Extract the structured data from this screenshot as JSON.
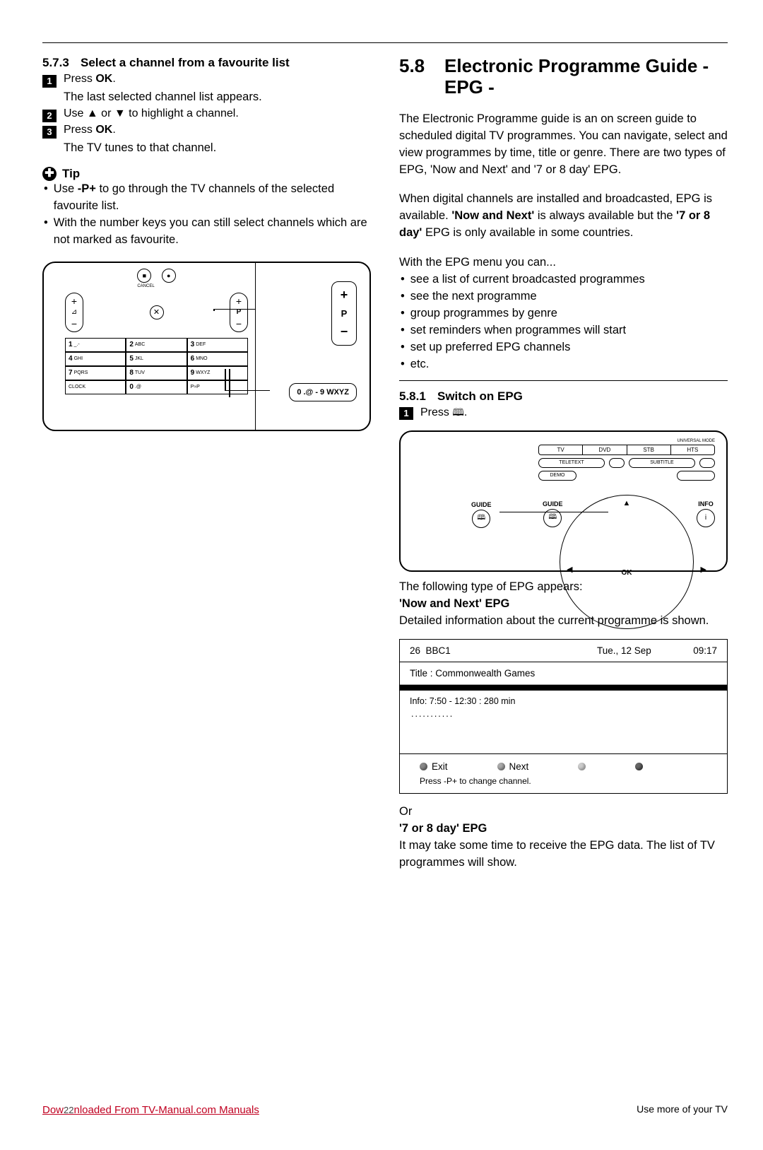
{
  "left": {
    "sec_num": "5.7.3",
    "sec_title": "Select a channel from a favourite list",
    "steps": [
      {
        "n": "1",
        "text_a": "Press ",
        "bold": "OK",
        "text_b": ".",
        "sub": "The last selected channel list appears."
      },
      {
        "n": "2",
        "text_a": "Use  ▲  or  ▼  to highlight a channel."
      },
      {
        "n": "3",
        "text_a": "Press ",
        "bold": "OK",
        "text_b": ".",
        "sub": "The TV tunes to that channel."
      }
    ],
    "tip_label": "Tip",
    "tips": [
      {
        "a": "Use ",
        "bold": "-P+",
        "b": " to go through the TV channels of the selected favourite list."
      },
      {
        "a": "With the number keys you can still select channels which are not marked as favourite."
      }
    ],
    "diagram": {
      "cancel": "CANCEL",
      "p_label": "P",
      "keypad": [
        [
          {
            "n": "1",
            "t": "_.-"
          },
          {
            "n": "2",
            "t": "ABC"
          },
          {
            "n": "3",
            "t": "DEF"
          }
        ],
        [
          {
            "n": "4",
            "t": "GHI"
          },
          {
            "n": "5",
            "t": "JKL"
          },
          {
            "n": "6",
            "t": "MNO"
          }
        ],
        [
          {
            "n": "7",
            "t": "PQRS"
          },
          {
            "n": "8",
            "t": "TUV"
          },
          {
            "n": "9",
            "t": "WXYZ"
          }
        ],
        [
          {
            "n": "",
            "t": "CLOCK"
          },
          {
            "n": "0",
            "t": ".@"
          },
          {
            "n": "",
            "t": "P≈P"
          }
        ]
      ],
      "callout_p_plus": "+",
      "callout_p_label": "P",
      "callout_p_minus": "−",
      "callout_keys": "0 .@  -  9 WXYZ"
    }
  },
  "right": {
    "h_num": "5.8",
    "h_title": "Electronic Programme Guide - EPG -",
    "p1": "The Electronic Programme guide is an on screen guide to scheduled digital TV programmes. You can navigate, select and view programmes by time, title or genre. There are two types of EPG, 'Now and Next' and '7 or 8 day' EPG.",
    "p2_a": "When digital channels are installed and broadcasted, EPG is available. ",
    "p2_b1": "'Now and Next'",
    "p2_c": " is always available but the ",
    "p2_b2": "'7 or 8 day'",
    "p2_d": " EPG is only available in some countries.",
    "p3": "With the EPG menu you can...",
    "list": [
      "see a list of current broadcasted programmes",
      "see the next programme",
      "group programmes by genre",
      "set reminders when programmes will start",
      "set up preferred EPG channels",
      "etc."
    ],
    "sub_num": "5.8.1",
    "sub_title": "Switch on EPG",
    "sub_step_a": "Press ",
    "sub_step_b": ".",
    "remote2": {
      "universal": "UNIVERSAL MODE",
      "modes": [
        "TV",
        "DVD",
        "STB",
        "HTS"
      ],
      "teletext": "TELETEXT",
      "subtitle": "SUBTITLE",
      "demo": "DEMO",
      "guide": "GUIDE",
      "info": "INFO",
      "ok": "OK"
    },
    "after1": "The following type of EPG appears:",
    "now_next": "'Now and Next' EPG",
    "after2": "Detailed information about the current programme is shown.",
    "epg": {
      "chnum": "26",
      "chname": "BBC1",
      "date": "Tue., 12 Sep",
      "time": "09:17",
      "title_label": "Title : Commonwealth Games",
      "info": "Info: 7:50 - 12:30 : 280 min",
      "dots": "...........",
      "exit": "Exit",
      "next": "Next",
      "hint": "Press -P+ to change channel."
    },
    "or": "Or",
    "seven": "'7 or 8 day' EPG",
    "after3": "It may take some time to receive the EPG data. The list of TV programmes will show."
  },
  "footer": {
    "left_a": "Dow",
    "left_pg": "22",
    "left_b": "nloaded From TV-Manual.com Manuals",
    "right": "Use more of your TV"
  }
}
